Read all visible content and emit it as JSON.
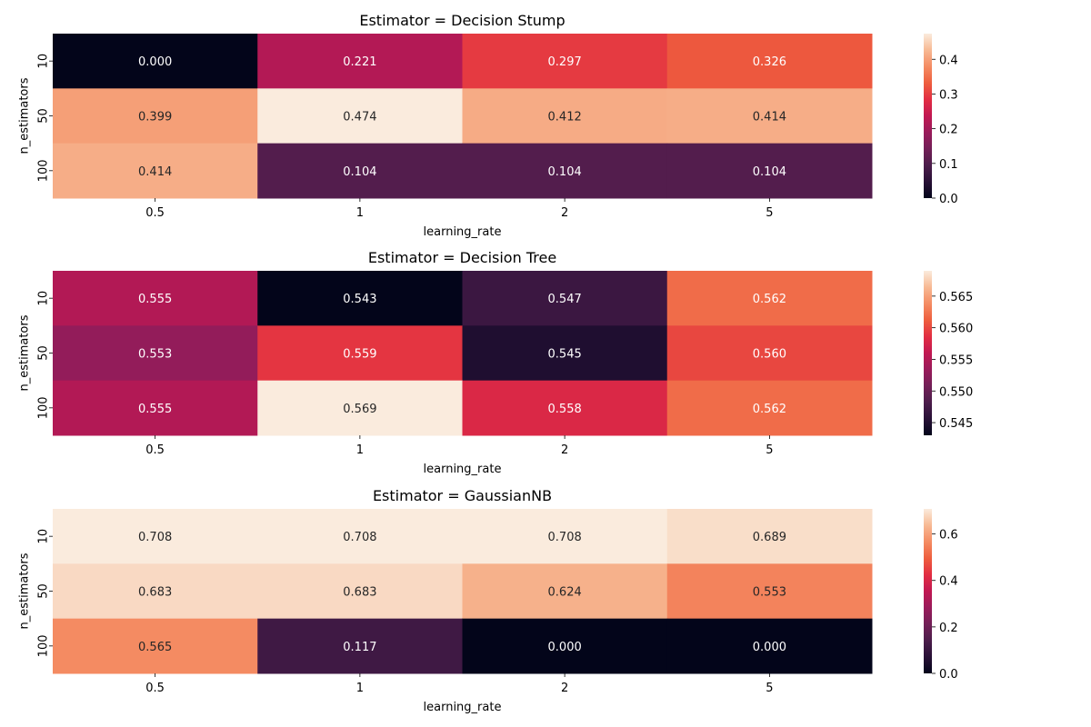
{
  "chart_data": [
    {
      "type": "heatmap",
      "title": "Estimator = Decision Stump",
      "xlabel": "learning_rate",
      "ylabel": "n_estimators",
      "x_categories": [
        "0.5",
        "1",
        "2",
        "5"
      ],
      "y_categories": [
        "10",
        "50",
        "100"
      ],
      "values": [
        [
          0.0,
          0.221,
          0.297,
          0.326
        ],
        [
          0.399,
          0.474,
          0.412,
          0.414
        ],
        [
          0.414,
          0.104,
          0.104,
          0.104
        ]
      ],
      "vmin": 0.0,
      "vmax": 0.474,
      "colorbar_ticks": [
        "0.0",
        "0.1",
        "0.2",
        "0.3",
        "0.4"
      ],
      "colormap": "rocket"
    },
    {
      "type": "heatmap",
      "title": "Estimator = Decision Tree",
      "xlabel": "learning_rate",
      "ylabel": "n_estimators",
      "x_categories": [
        "0.5",
        "1",
        "2",
        "5"
      ],
      "y_categories": [
        "10",
        "50",
        "100"
      ],
      "values": [
        [
          0.555,
          0.543,
          0.547,
          0.562
        ],
        [
          0.553,
          0.559,
          0.545,
          0.56
        ],
        [
          0.555,
          0.569,
          0.558,
          0.562
        ]
      ],
      "vmin": 0.543,
      "vmax": 0.569,
      "colorbar_ticks": [
        "0.545",
        "0.550",
        "0.555",
        "0.560",
        "0.565"
      ],
      "colormap": "rocket"
    },
    {
      "type": "heatmap",
      "title": "Estimator = GaussianNB",
      "xlabel": "learning_rate",
      "ylabel": "n_estimators",
      "x_categories": [
        "0.5",
        "1",
        "2",
        "5"
      ],
      "y_categories": [
        "10",
        "50",
        "100"
      ],
      "values": [
        [
          0.708,
          0.708,
          0.708,
          0.689
        ],
        [
          0.683,
          0.683,
          0.624,
          0.553
        ],
        [
          0.565,
          0.117,
          0.0,
          0.0
        ]
      ],
      "vmin": 0.0,
      "vmax": 0.708,
      "colorbar_ticks": [
        "0.0",
        "0.2",
        "0.4",
        "0.6"
      ],
      "colormap": "rocket"
    }
  ]
}
